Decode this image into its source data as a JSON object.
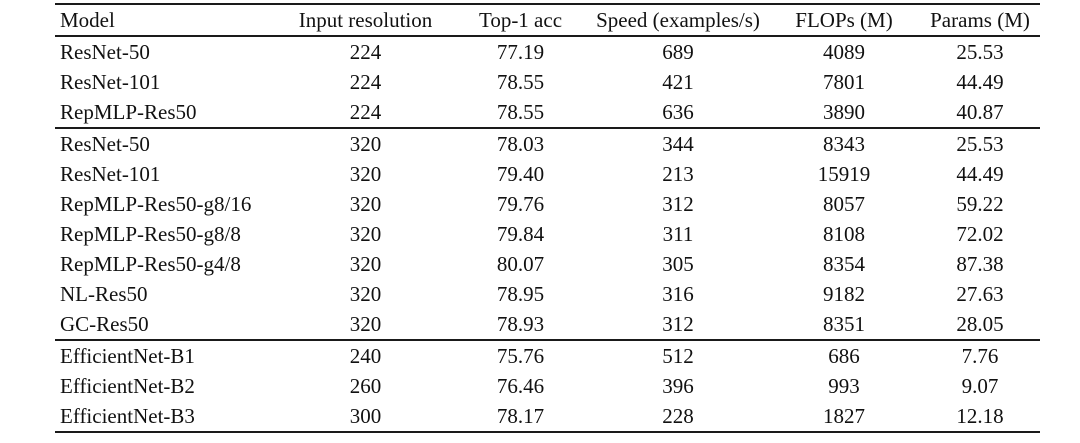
{
  "table": {
    "columns": [
      "Model",
      "Input resolution",
      "Top-1 acc",
      "Speed (examples/s)",
      "FLOPs (M)",
      "Params (M)"
    ],
    "groups": [
      {
        "rows": [
          [
            "ResNet-50",
            "224",
            "77.19",
            "689",
            "4089",
            "25.53"
          ],
          [
            "ResNet-101",
            "224",
            "78.55",
            "421",
            "7801",
            "44.49"
          ],
          [
            "RepMLP-Res50",
            "224",
            "78.55",
            "636",
            "3890",
            "40.87"
          ]
        ]
      },
      {
        "rows": [
          [
            "ResNet-50",
            "320",
            "78.03",
            "344",
            "8343",
            "25.53"
          ],
          [
            "ResNet-101",
            "320",
            "79.40",
            "213",
            "15919",
            "44.49"
          ],
          [
            "RepMLP-Res50-g8/16",
            "320",
            "79.76",
            "312",
            "8057",
            "59.22"
          ],
          [
            "RepMLP-Res50-g8/8",
            "320",
            "79.84",
            "311",
            "8108",
            "72.02"
          ],
          [
            "RepMLP-Res50-g4/8",
            "320",
            "80.07",
            "305",
            "8354",
            "87.38"
          ],
          [
            "NL-Res50",
            "320",
            "78.95",
            "316",
            "9182",
            "27.63"
          ],
          [
            "GC-Res50",
            "320",
            "78.93",
            "312",
            "8351",
            "28.05"
          ]
        ]
      },
      {
        "rows": [
          [
            "EfficientNet-B1",
            "240",
            "75.76",
            "512",
            "686",
            "7.76"
          ],
          [
            "EfficientNet-B2",
            "260",
            "76.46",
            "396",
            "993",
            "9.07"
          ],
          [
            "EfficientNet-B3",
            "300",
            "78.17",
            "228",
            "1827",
            "12.18"
          ]
        ]
      }
    ]
  },
  "chart_data": {
    "type": "table",
    "title": "",
    "columns": [
      "Model",
      "Input resolution",
      "Top-1 acc",
      "Speed (examples/s)",
      "FLOPs (M)",
      "Params (M)"
    ],
    "rows": [
      [
        "ResNet-50",
        224,
        77.19,
        689,
        4089,
        25.53
      ],
      [
        "ResNet-101",
        224,
        78.55,
        421,
        7801,
        44.49
      ],
      [
        "RepMLP-Res50",
        224,
        78.55,
        636,
        3890,
        40.87
      ],
      [
        "ResNet-50",
        320,
        78.03,
        344,
        8343,
        25.53
      ],
      [
        "ResNet-101",
        320,
        79.4,
        213,
        15919,
        44.49
      ],
      [
        "RepMLP-Res50-g8/16",
        320,
        79.76,
        312,
        8057,
        59.22
      ],
      [
        "RepMLP-Res50-g8/8",
        320,
        79.84,
        311,
        8108,
        72.02
      ],
      [
        "RepMLP-Res50-g4/8",
        320,
        80.07,
        305,
        8354,
        87.38
      ],
      [
        "NL-Res50",
        320,
        78.95,
        316,
        9182,
        27.63
      ],
      [
        "GC-Res50",
        320,
        78.93,
        312,
        8351,
        28.05
      ],
      [
        "EfficientNet-B1",
        240,
        75.76,
        512,
        686,
        7.76
      ],
      [
        "EfficientNet-B2",
        260,
        76.46,
        396,
        993,
        9.07
      ],
      [
        "EfficientNet-B3",
        300,
        78.17,
        228,
        1827,
        12.18
      ]
    ]
  },
  "colors": {
    "background": "#ffffff",
    "text": "#111111",
    "rule": "#1a1a1a"
  }
}
